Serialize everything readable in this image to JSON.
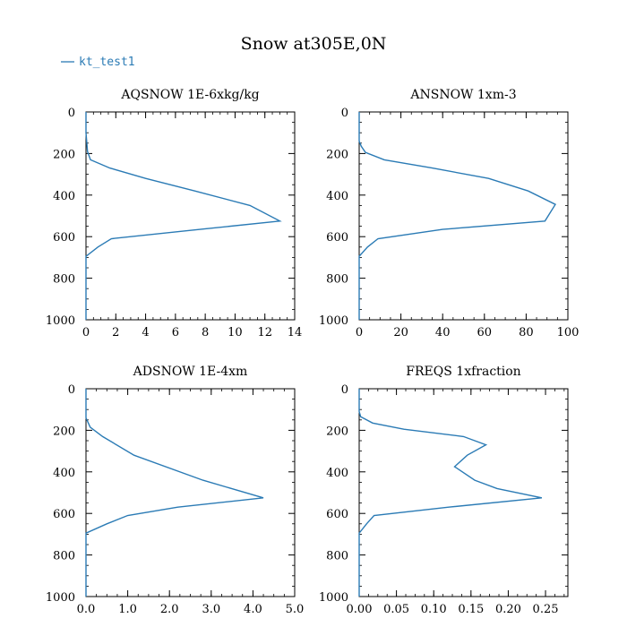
{
  "figure_title": "Snow at305E,0N",
  "legend": {
    "label": "kt_test1",
    "color": "#2b7bb5",
    "placement": "top-left"
  },
  "chart_data": [
    {
      "type": "line",
      "title": "AQSNOW  1E-6xkg/kg",
      "xlabel": "",
      "ylabel": "",
      "xlim": [
        0,
        14
      ],
      "ylim": [
        1000,
        0
      ],
      "y_inverted": true,
      "xticks": [
        0,
        2,
        4,
        6,
        8,
        10,
        12,
        14
      ],
      "xtick_labels": [
        "0",
        "2",
        "4",
        "6",
        "8",
        "10",
        "12",
        "14"
      ],
      "yticks": [
        0,
        200,
        400,
        600,
        800,
        1000
      ],
      "ytick_labels": [
        "0",
        "200",
        "400",
        "600",
        "800",
        "1000"
      ],
      "series": [
        {
          "name": "kt_test1",
          "x": [
            0,
            0,
            0.1,
            0.3,
            1.6,
            4.0,
            7.3,
            11.0,
            13.0,
            7.0,
            1.7,
            0.8,
            0,
            0,
            0
          ],
          "y": [
            0,
            100,
            190,
            230,
            270,
            320,
            380,
            450,
            525,
            570,
            610,
            650,
            695,
            700,
            1000
          ]
        }
      ]
    },
    {
      "type": "line",
      "title": "ANSNOW  1xm-3",
      "xlabel": "",
      "ylabel": "",
      "xlim": [
        0,
        100
      ],
      "ylim": [
        1000,
        0
      ],
      "y_inverted": true,
      "xticks": [
        0,
        20,
        40,
        60,
        80,
        100
      ],
      "xtick_labels": [
        "0",
        "20",
        "40",
        "60",
        "80",
        "100"
      ],
      "yticks": [
        0,
        200,
        400,
        600,
        800,
        1000
      ],
      "ytick_labels": [
        "0",
        "200",
        "400",
        "600",
        "800",
        "1000"
      ],
      "series": [
        {
          "name": "kt_test1",
          "x": [
            0,
            0,
            1,
            3,
            12,
            35,
            62,
            81,
            94,
            89,
            40,
            9,
            4,
            0,
            0
          ],
          "y": [
            0,
            140,
            165,
            195,
            230,
            270,
            320,
            380,
            445,
            525,
            565,
            610,
            650,
            695,
            1000
          ]
        }
      ]
    },
    {
      "type": "line",
      "title": "ADSNOW  1E-4xm",
      "xlabel": "",
      "ylabel": "",
      "xlim": [
        0,
        5
      ],
      "ylim": [
        1000,
        0
      ],
      "y_inverted": true,
      "xticks": [
        0,
        1,
        2,
        3,
        4,
        5
      ],
      "xtick_labels": [
        "0.0",
        "1.0",
        "2.0",
        "3.0",
        "4.0",
        "5.0"
      ],
      "yticks": [
        0,
        200,
        400,
        600,
        800,
        1000
      ],
      "ytick_labels": [
        "0",
        "200",
        "400",
        "600",
        "800",
        "1000"
      ],
      "series": [
        {
          "name": "kt_test1",
          "x": [
            0,
            0,
            0.1,
            0.4,
            1.15,
            2.8,
            4.25,
            2.2,
            1.0,
            0.5,
            0,
            0,
            0
          ],
          "y": [
            0,
            140,
            185,
            230,
            320,
            440,
            525,
            570,
            610,
            650,
            695,
            700,
            1000
          ]
        }
      ]
    },
    {
      "type": "line",
      "title": "FREQS  1xfraction",
      "xlabel": "",
      "ylabel": "",
      "xlim": [
        0,
        0.28
      ],
      "ylim": [
        1000,
        0
      ],
      "y_inverted": true,
      "xticks": [
        0,
        0.05,
        0.1,
        0.15,
        0.2,
        0.25
      ],
      "xtick_labels": [
        "0.00",
        "0.05",
        "0.10",
        "0.15",
        "0.20",
        "0.25"
      ],
      "yticks": [
        0,
        200,
        400,
        600,
        800,
        1000
      ],
      "ytick_labels": [
        "0",
        "200",
        "400",
        "600",
        "800",
        "1000"
      ],
      "series": [
        {
          "name": "kt_test1",
          "x": [
            0,
            0,
            0.002,
            0.018,
            0.06,
            0.14,
            0.17,
            0.145,
            0.128,
            0.155,
            0.185,
            0.245,
            0.12,
            0.02,
            0.01,
            0,
            0
          ],
          "y": [
            0,
            110,
            135,
            165,
            195,
            230,
            270,
            320,
            375,
            440,
            480,
            525,
            570,
            610,
            650,
            695,
            1000
          ]
        }
      ]
    }
  ]
}
